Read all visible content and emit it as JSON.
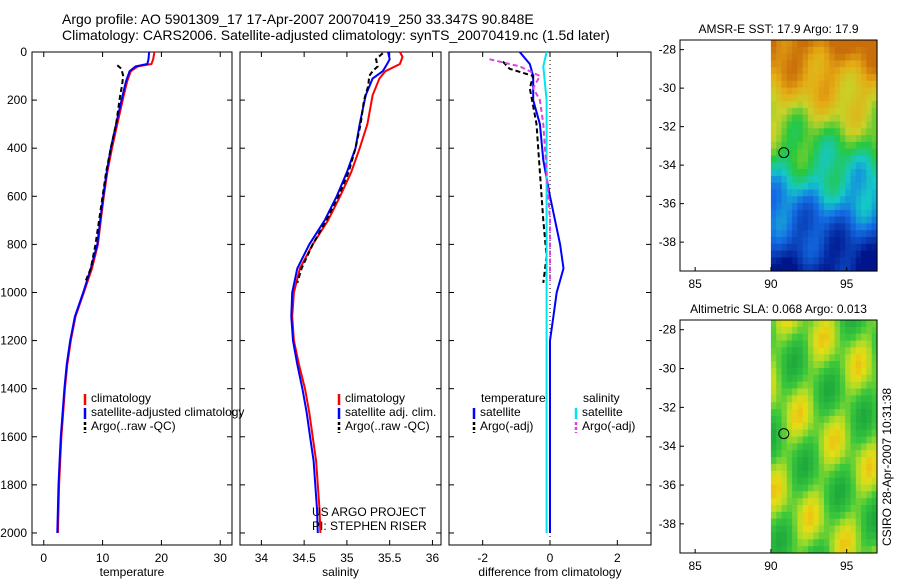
{
  "title_line1": "Argo profile: AO 5901309_17 17-Apr-2007 20070419_250 33.347S 90.848E",
  "title_line2": "Climatology: CARS2006. Satellite-adjusted climatology: synTS_20070419.nc (1.5d later)",
  "side_stamp": "CSIRO 28-Apr-2007 10:31:38",
  "colors": {
    "red": "#ff0000",
    "blue": "#0000ff",
    "black": "#000000",
    "cyan": "#00e5ee",
    "magenta": "#e040e0"
  },
  "chart_data": [
    {
      "id": "temperature",
      "type": "line",
      "xlabel": "temperature",
      "xlim": [
        -2,
        32
      ],
      "ylim": [
        2050,
        0
      ],
      "xticks": [
        "0",
        "10",
        "20",
        "30"
      ],
      "xtick_values": [
        0,
        10,
        20,
        30
      ],
      "yticks": [
        "0",
        "200",
        "400",
        "600",
        "800",
        "1000",
        "1200",
        "1400",
        "1600",
        "1800",
        "2000"
      ],
      "ytick_values": [
        0,
        200,
        400,
        600,
        800,
        1000,
        1200,
        1400,
        1600,
        1800,
        2000
      ],
      "legend": [
        "climatology",
        "satellite-adjusted climatology",
        "Argo(..raw -QC)"
      ],
      "series": [
        {
          "name": "climatology",
          "color": "#ff0000",
          "points": [
            [
              18.8,
              0
            ],
            [
              18.6,
              30
            ],
            [
              18.3,
              50
            ],
            [
              16,
              60
            ],
            [
              14.8,
              80
            ],
            [
              14.2,
              120
            ],
            [
              13.6,
              180
            ],
            [
              12.5,
              300
            ],
            [
              11.6,
              400
            ],
            [
              10.8,
              500
            ],
            [
              10.2,
              600
            ],
            [
              9.7,
              700
            ],
            [
              9.2,
              800
            ],
            [
              8.2,
              900
            ],
            [
              6.8,
              1000
            ],
            [
              5.4,
              1100
            ],
            [
              4.6,
              1200
            ],
            [
              4.0,
              1300
            ],
            [
              3.6,
              1400
            ],
            [
              3.3,
              1500
            ],
            [
              3.0,
              1600
            ],
            [
              2.8,
              1700
            ],
            [
              2.6,
              1800
            ],
            [
              2.5,
              1900
            ],
            [
              2.4,
              2000
            ]
          ]
        },
        {
          "name": "satellite-adjusted climatology",
          "color": "#0000ff",
          "points": [
            [
              17.9,
              0
            ],
            [
              17.8,
              30
            ],
            [
              17.6,
              50
            ],
            [
              15.6,
              60
            ],
            [
              14.6,
              80
            ],
            [
              14.0,
              120
            ],
            [
              13.4,
              180
            ],
            [
              12.3,
              300
            ],
            [
              11.4,
              400
            ],
            [
              10.7,
              500
            ],
            [
              10.1,
              600
            ],
            [
              9.6,
              700
            ],
            [
              9.1,
              800
            ],
            [
              8.0,
              900
            ],
            [
              6.7,
              1000
            ],
            [
              5.3,
              1100
            ],
            [
              4.5,
              1200
            ],
            [
              3.9,
              1300
            ],
            [
              3.5,
              1400
            ],
            [
              3.2,
              1500
            ],
            [
              2.9,
              1600
            ],
            [
              2.7,
              1700
            ],
            [
              2.5,
              1800
            ],
            [
              2.4,
              1900
            ],
            [
              2.3,
              2000
            ]
          ]
        },
        {
          "name": "Argo(..raw -QC)",
          "color": "#000000",
          "dash": true,
          "points": [
            [
              12.5,
              55
            ],
            [
              13.2,
              70
            ],
            [
              13.5,
              100
            ],
            [
              13.3,
              140
            ],
            [
              13.0,
              180
            ],
            [
              12.3,
              300
            ],
            [
              11.4,
              400
            ],
            [
              10.6,
              500
            ],
            [
              10.0,
              600
            ],
            [
              9.4,
              700
            ],
            [
              8.8,
              800
            ],
            [
              8.0,
              900
            ],
            [
              7.0,
              960
            ]
          ]
        }
      ]
    },
    {
      "id": "salinity",
      "type": "line",
      "xlabel": "salinity",
      "xlim": [
        33.75,
        36.1
      ],
      "ylim": [
        2050,
        0
      ],
      "xticks": [
        "34",
        "34.5",
        "35",
        "35.5",
        "36"
      ],
      "xtick_values": [
        34,
        34.5,
        35,
        35.5,
        36
      ],
      "legend": [
        "climatology",
        "satellite adj. clim.",
        "Argo(..raw -QC)"
      ],
      "annotation": [
        "US ARGO PROJECT",
        "PI: STEPHEN RISER"
      ],
      "series": [
        {
          "name": "climatology",
          "color": "#ff0000",
          "points": [
            [
              35.62,
              0
            ],
            [
              35.65,
              20
            ],
            [
              35.62,
              50
            ],
            [
              35.45,
              80
            ],
            [
              35.38,
              110
            ],
            [
              35.3,
              180
            ],
            [
              35.24,
              300
            ],
            [
              35.15,
              400
            ],
            [
              35.05,
              500
            ],
            [
              34.92,
              600
            ],
            [
              34.78,
              700
            ],
            [
              34.6,
              800
            ],
            [
              34.45,
              900
            ],
            [
              34.38,
              1000
            ],
            [
              34.36,
              1100
            ],
            [
              34.38,
              1200
            ],
            [
              34.44,
              1300
            ],
            [
              34.51,
              1400
            ],
            [
              34.56,
              1500
            ],
            [
              34.6,
              1600
            ],
            [
              34.64,
              1700
            ],
            [
              34.66,
              1800
            ],
            [
              34.68,
              1900
            ],
            [
              34.69,
              2000
            ]
          ]
        },
        {
          "name": "satellite adj. clim.",
          "color": "#0000ff",
          "points": [
            [
              35.48,
              0
            ],
            [
              35.5,
              30
            ],
            [
              35.47,
              50
            ],
            [
              35.42,
              80
            ],
            [
              35.3,
              110
            ],
            [
              35.22,
              180
            ],
            [
              35.15,
              300
            ],
            [
              35.1,
              400
            ],
            [
              35.0,
              500
            ],
            [
              34.88,
              600
            ],
            [
              34.74,
              700
            ],
            [
              34.56,
              800
            ],
            [
              34.42,
              900
            ],
            [
              34.36,
              1000
            ],
            [
              34.35,
              1100
            ],
            [
              34.37,
              1200
            ],
            [
              34.42,
              1300
            ],
            [
              34.48,
              1400
            ],
            [
              34.53,
              1500
            ],
            [
              34.57,
              1600
            ],
            [
              34.61,
              1700
            ],
            [
              34.63,
              1800
            ],
            [
              34.65,
              1900
            ],
            [
              34.66,
              2000
            ]
          ]
        },
        {
          "name": "Argo(..raw -QC)",
          "color": "#000000",
          "dash": true,
          "points": [
            [
              35.42,
              5
            ],
            [
              35.34,
              30
            ],
            [
              35.36,
              60
            ],
            [
              35.3,
              80
            ],
            [
              35.26,
              100
            ],
            [
              35.25,
              140
            ],
            [
              35.2,
              200
            ],
            [
              35.16,
              300
            ],
            [
              35.1,
              400
            ],
            [
              35.02,
              500
            ],
            [
              34.9,
              600
            ],
            [
              34.76,
              700
            ],
            [
              34.6,
              800
            ],
            [
              34.47,
              900
            ],
            [
              34.42,
              960
            ]
          ]
        }
      ]
    },
    {
      "id": "difference",
      "type": "line",
      "xlabel": "difference from climatology",
      "xlim": [
        -3,
        3
      ],
      "ylim": [
        2050,
        0
      ],
      "xticks": [
        "-2",
        "0",
        "2"
      ],
      "xtick_values": [
        -2,
        0,
        2
      ],
      "legend_headers": [
        "temperature",
        "salinity"
      ],
      "legend": [
        "satellite",
        "Argo(-adj)",
        "satellite",
        "Argo(-adj)"
      ],
      "series": [
        {
          "name": "temperature satellite",
          "color": "#0000ff",
          "points": [
            [
              -0.9,
              0
            ],
            [
              -0.6,
              50
            ],
            [
              -0.5,
              100
            ],
            [
              -0.5,
              200
            ],
            [
              -0.3,
              300
            ],
            [
              -0.2,
              450
            ],
            [
              0.0,
              600
            ],
            [
              0.3,
              800
            ],
            [
              0.4,
              900
            ],
            [
              0.2,
              1000
            ],
            [
              0.1,
              1100
            ],
            [
              0,
              1200
            ],
            [
              0,
              1400
            ],
            [
              0,
              1600
            ],
            [
              0,
              1800
            ],
            [
              0,
              2000
            ]
          ]
        },
        {
          "name": "temperature Argo(-adj)",
          "color": "#000000",
          "dash": true,
          "points": [
            [
              -1.4,
              40
            ],
            [
              -1.2,
              70
            ],
            [
              -0.5,
              100
            ],
            [
              -0.6,
              150
            ],
            [
              -0.4,
              300
            ],
            [
              -0.3,
              500
            ],
            [
              -0.2,
              700
            ],
            [
              -0.1,
              850
            ],
            [
              -0.2,
              960
            ]
          ]
        },
        {
          "name": "salinity satellite",
          "color": "#00e5ee",
          "points": [
            [
              -0.1,
              0
            ],
            [
              -0.2,
              60
            ],
            [
              -0.1,
              200
            ],
            [
              -0.1,
              400
            ],
            [
              -0.1,
              700
            ],
            [
              -0.1,
              1000
            ],
            [
              -0.1,
              1300
            ],
            [
              -0.1,
              1700
            ],
            [
              -0.1,
              2000
            ]
          ]
        },
        {
          "name": "salinity Argo(-adj)",
          "color": "#e040e0",
          "dash": true,
          "points": [
            [
              -1.8,
              30
            ],
            [
              -0.9,
              60
            ],
            [
              -0.3,
              100
            ],
            [
              -0.5,
              150
            ],
            [
              -0.3,
              200
            ],
            [
              -0.2,
              300
            ],
            [
              -0.1,
              500
            ],
            [
              0,
              700
            ],
            [
              0,
              960
            ]
          ]
        }
      ]
    },
    {
      "id": "sst_map",
      "type": "heatmap",
      "title": "AMSR-E SST: 17.9 Argo: 17.9",
      "xlim": [
        84,
        97
      ],
      "ylim": [
        -39.5,
        -27.5
      ],
      "xticks": [
        "85",
        "90",
        "95"
      ],
      "xtick_values": [
        85,
        90,
        95
      ],
      "yticks": [
        "-28",
        "-30",
        "-32",
        "-34",
        "-36",
        "-38"
      ],
      "ytick_values": [
        -28,
        -30,
        -32,
        -34,
        -36,
        -38
      ],
      "data_extent_lon": [
        90,
        97
      ],
      "marker": {
        "lon": 90.85,
        "lat": -33.35
      }
    },
    {
      "id": "sla_map",
      "type": "heatmap",
      "title": "Altimetric SLA: 0.068 Argo: 0.013",
      "xlim": [
        84,
        97
      ],
      "ylim": [
        -39.5,
        -27.5
      ],
      "xticks": [
        "85",
        "90",
        "95"
      ],
      "xtick_values": [
        85,
        90,
        95
      ],
      "yticks": [
        "-28",
        "-30",
        "-32",
        "-34",
        "-36",
        "-38"
      ],
      "ytick_values": [
        -28,
        -30,
        -32,
        -34,
        -36,
        -38
      ],
      "data_extent_lon": [
        90,
        97
      ],
      "marker": {
        "lon": 90.85,
        "lat": -33.35
      }
    }
  ]
}
